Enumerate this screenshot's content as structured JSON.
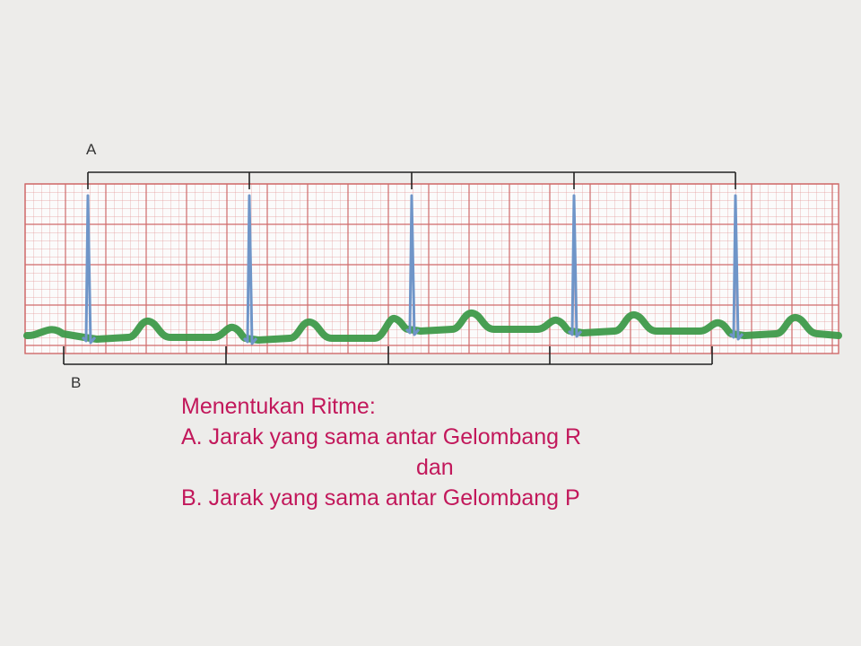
{
  "labels": {
    "r_marker": "A",
    "p_marker": "B"
  },
  "caption": {
    "heading": "Menentukan Ritme:",
    "item_a": "A. Jarak yang sama antar Gelombang R",
    "connector": "dan",
    "item_b": "B. Jarak yang sama antar Gelombang P"
  },
  "colors": {
    "background": "#edecea",
    "grid_line": "#d97a7a",
    "ecg_trace": "#3e9a4a",
    "qrs_spike": "#6f95c8",
    "bracket": "#222222",
    "caption_text": "#c2185b"
  },
  "icons": {
    "ecg_paper": "ecg-grid",
    "r_wave": "qrs-spike",
    "p_wave": "p-wave-bump"
  }
}
